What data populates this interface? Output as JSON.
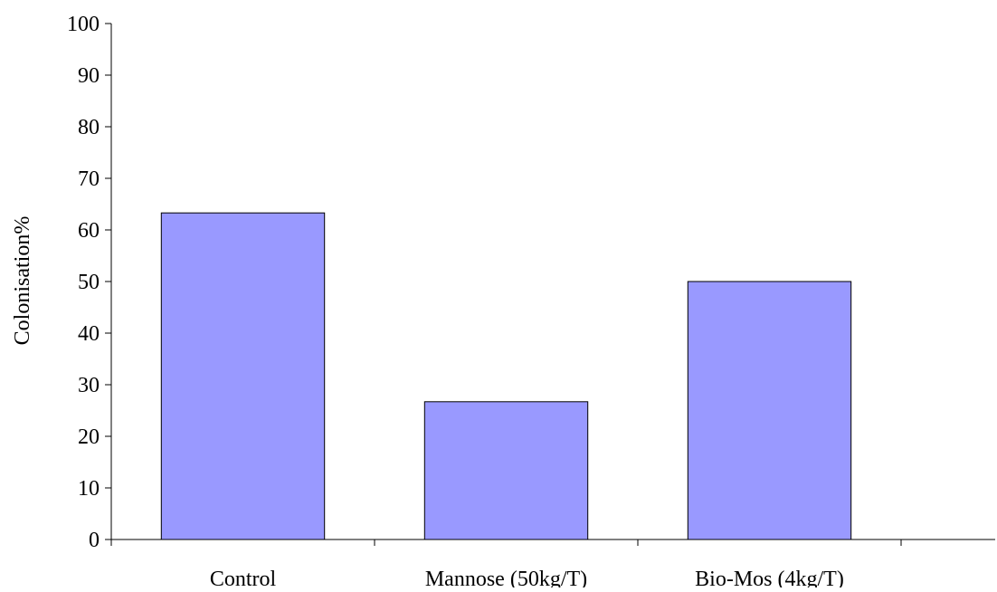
{
  "chart_data": {
    "type": "bar",
    "categories": [
      "Control",
      "Mannose (50kg/T)",
      "Bio-Mos (4kg/T)"
    ],
    "values": [
      63.3,
      26.7,
      50.0
    ],
    "title": "",
    "xlabel": "",
    "ylabel": "Colonisation%",
    "ylim": [
      0,
      100
    ],
    "yticks": [
      0,
      10,
      20,
      30,
      40,
      50,
      60,
      70,
      80,
      90,
      100
    ],
    "grid": false,
    "legend": "none",
    "bar_color": "#9999ff",
    "bar_edge_color": "#000000"
  }
}
